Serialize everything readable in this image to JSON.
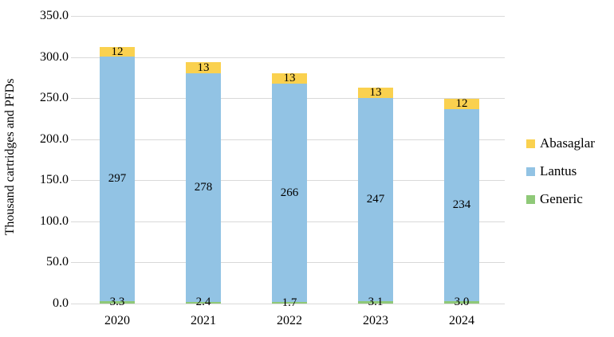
{
  "chart_data": {
    "type": "bar",
    "stacked": true,
    "title": "",
    "xlabel": "",
    "ylabel": "Thousand cartridges and PFDs",
    "categories": [
      "2020",
      "2021",
      "2022",
      "2023",
      "2024"
    ],
    "series": [
      {
        "name": "Generic",
        "color": "#8fc978",
        "values": [
          3.3,
          2.4,
          1.7,
          3.1,
          3.0
        ],
        "labels": [
          "3.3",
          "2.4",
          "1.7",
          "3.1",
          "3.0"
        ]
      },
      {
        "name": "Lantus",
        "color": "#92c3e4",
        "values": [
          297,
          278,
          266,
          247,
          234
        ],
        "labels": [
          "297",
          "278",
          "266",
          "247",
          "234"
        ]
      },
      {
        "name": "Abasaglar",
        "color": "#fad14f",
        "values": [
          12,
          13,
          13,
          13,
          12
        ],
        "labels": [
          "12",
          "13",
          "13",
          "13",
          "12"
        ]
      }
    ],
    "legend_order": [
      "Abasaglar",
      "Lantus",
      "Generic"
    ],
    "legend_position": "right",
    "ylim": [
      0,
      350
    ],
    "ytick_step": 50,
    "ytick_labels": [
      "0.0",
      "50.0",
      "100.0",
      "150.0",
      "200.0",
      "250.0",
      "300.0",
      "350.0"
    ],
    "grid": true,
    "gridline_color": "#d9d9d9"
  }
}
